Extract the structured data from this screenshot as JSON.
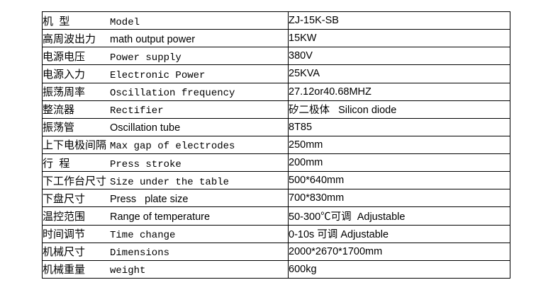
{
  "table": {
    "title": "Machine specification table",
    "model": "ZJ-15K-SB",
    "colors": {
      "border": "#000000",
      "text": "#000000",
      "background": "#ffffff"
    },
    "rows": [
      {
        "cn": "机  型",
        "en": "Model",
        "value": "ZJ-15K-SB"
      },
      {
        "cn": "高周波出力",
        "en": "math output power",
        "value": "15KW"
      },
      {
        "cn": "电源电压",
        "en": "Power supply",
        "value": "380V"
      },
      {
        "cn": "电源入力",
        "en": "Electronic Power",
        "value": "25KVA"
      },
      {
        "cn": "振荡周率",
        "en": "Oscillation frequency",
        "value": "27.12or40.68MHZ"
      },
      {
        "cn": "整流器",
        "en": "Rectifier",
        "value": "矽二极体   Silicon diode"
      },
      {
        "cn": "振荡管",
        "en": "Oscillation tube",
        "value": "8T85"
      },
      {
        "cn": "上下电极间隔",
        "en": "Max gap of electrodes",
        "value": "250mm"
      },
      {
        "cn": "行  程",
        "en": "Press stroke",
        "value": "200mm"
      },
      {
        "cn": "下工作台尺寸",
        "en": "Size under the table",
        "value": "500*640mm"
      },
      {
        "cn": "下盘尺寸",
        "en": "Press   plate size",
        "value": "700*830mm"
      },
      {
        "cn": "温控范围",
        "en": "Range of temperature",
        "value": "50-300℃可调  Adjustable"
      },
      {
        "cn": "时间调节",
        "en": "Time change",
        "value": "0-10s 可调 Adjustable"
      },
      {
        "cn": "机械尺寸",
        "en": "Dimensions",
        "value": "2000*2670*1700mm"
      },
      {
        "cn": "机械重量",
        "en": "weight",
        "value": "600kg"
      }
    ]
  }
}
